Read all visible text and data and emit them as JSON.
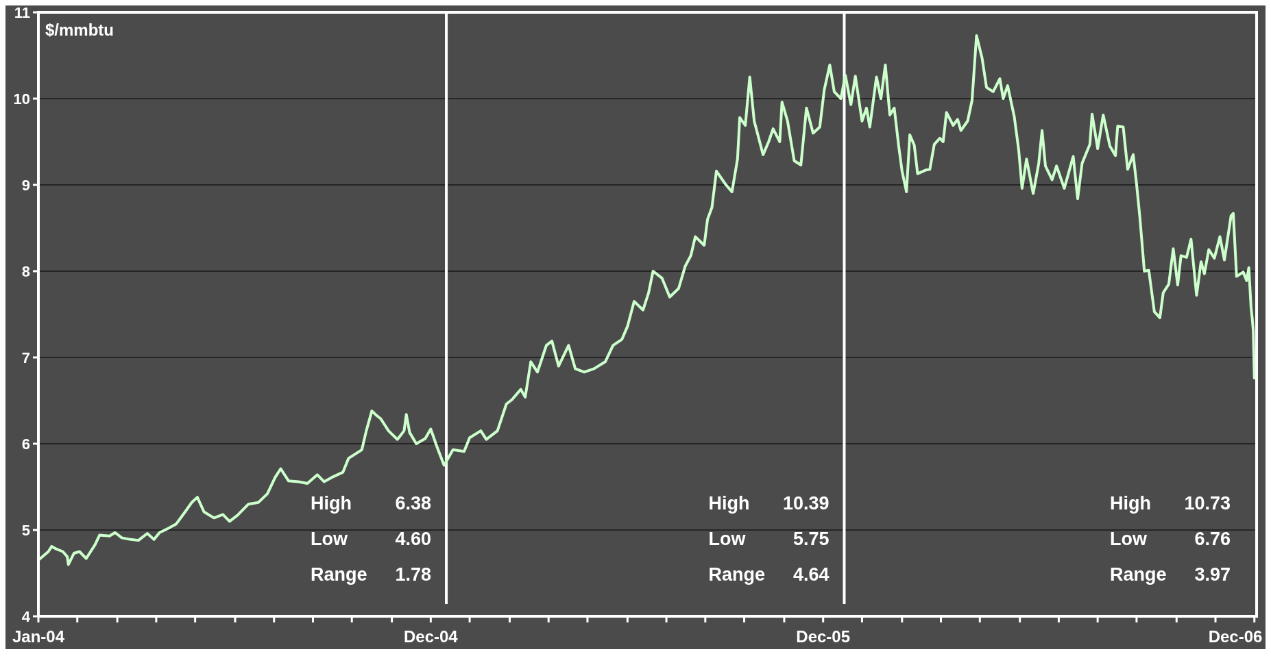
{
  "chart_data": {
    "type": "line",
    "ylabel": "$/mmbtu",
    "xlim": [
      "2004-01-02",
      "2007-01-02"
    ],
    "ylim": [
      4,
      11
    ],
    "yticks": [
      4,
      5,
      6,
      7,
      8,
      9,
      10,
      11
    ],
    "xticks": [
      {
        "value": "2004-01-02",
        "label": "Jan-04"
      },
      {
        "value": "2004-02-06",
        "label": null
      },
      {
        "value": "2004-03-13",
        "label": null
      },
      {
        "value": "2004-04-17",
        "label": null
      },
      {
        "value": "2004-05-22",
        "label": null
      },
      {
        "value": "2004-06-27",
        "label": null
      },
      {
        "value": "2004-08-01",
        "label": null
      },
      {
        "value": "2004-09-05",
        "label": null
      },
      {
        "value": "2004-10-10",
        "label": null
      },
      {
        "value": "2004-11-15",
        "label": null
      },
      {
        "value": "2004-12-20",
        "label": "Dec-04"
      },
      {
        "value": "2005-01-24",
        "label": null
      },
      {
        "value": "2005-03-01",
        "label": null
      },
      {
        "value": "2005-04-05",
        "label": null
      },
      {
        "value": "2005-05-10",
        "label": null
      },
      {
        "value": "2005-06-15",
        "label": null
      },
      {
        "value": "2005-07-20",
        "label": null
      },
      {
        "value": "2005-08-24",
        "label": null
      },
      {
        "value": "2005-09-28",
        "label": null
      },
      {
        "value": "2005-11-03",
        "label": null
      },
      {
        "value": "2005-12-08",
        "label": "Dec-05"
      },
      {
        "value": "2006-01-12",
        "label": null
      },
      {
        "value": "2006-02-17",
        "label": null
      },
      {
        "value": "2006-03-24",
        "label": null
      },
      {
        "value": "2006-04-28",
        "label": null
      },
      {
        "value": "2006-06-03",
        "label": null
      },
      {
        "value": "2006-07-08",
        "label": null
      },
      {
        "value": "2006-08-12",
        "label": null
      },
      {
        "value": "2006-09-16",
        "label": null
      },
      {
        "value": "2006-10-22",
        "label": null
      },
      {
        "value": "2006-11-26",
        "label": null
      },
      {
        "value": "2006-12-31",
        "label": "Dec-06"
      }
    ],
    "grid": "y",
    "ref_lines": [
      {
        "axis": "x",
        "value": "2005-01-03",
        "color": "#ffffff"
      },
      {
        "axis": "x",
        "value": "2005-12-27",
        "color": "#ffffff"
      }
    ],
    "annotations": [
      "High 6.38",
      "Low 4.60",
      "Range 1.78",
      "High 10.39",
      "Low 5.75",
      "Range 4.64",
      "High 10.73",
      "Low 6.76",
      "Range 3.97"
    ],
    "series": [
      {
        "color": "#ccffcc",
        "x": [
          "2004-01-02",
          "2004-01-11",
          "2004-01-14",
          "2004-01-18",
          "2004-01-24",
          "2004-01-28",
          "2004-01-29",
          "2004-02-03",
          "2004-02-08",
          "2004-02-14",
          "2004-02-18",
          "2004-02-22",
          "2004-02-26",
          "2004-03-06",
          "2004-03-11",
          "2004-03-17",
          "2004-03-25",
          "2004-04-01",
          "2004-04-09",
          "2004-04-15",
          "2004-04-20",
          "2004-04-28",
          "2004-05-05",
          "2004-05-13",
          "2004-05-19",
          "2004-05-24",
          "2004-05-30",
          "2004-06-08",
          "2004-06-16",
          "2004-06-22",
          "2004-06-29",
          "2004-07-09",
          "2004-07-18",
          "2004-07-26",
          "2004-08-02",
          "2004-08-07",
          "2004-08-14",
          "2004-08-23",
          "2004-08-31",
          "2004-09-09",
          "2004-09-15",
          "2004-09-22",
          "2004-10-02",
          "2004-10-07",
          "2004-10-19",
          "2004-10-23",
          "2004-10-28",
          "2004-11-01",
          "2004-11-05",
          "2004-11-12",
          "2004-11-20",
          "2004-11-26",
          "2004-11-28",
          "2004-12-01",
          "2004-12-07",
          "2004-12-15",
          "2004-12-20",
          "2004-12-26",
          "2005-01-01",
          "2005-01-09",
          "2005-01-19",
          "2005-01-24",
          "2005-02-03",
          "2005-02-08",
          "2005-02-18",
          "2005-02-26",
          "2005-03-03",
          "2005-03-11",
          "2005-03-15",
          "2005-03-20",
          "2005-03-26",
          "2005-04-03",
          "2005-04-08",
          "2005-04-14",
          "2005-04-23",
          "2005-04-29",
          "2005-05-07",
          "2005-05-16",
          "2005-05-26",
          "2005-06-02",
          "2005-06-10",
          "2005-06-15",
          "2005-06-21",
          "2005-06-29",
          "2005-07-04",
          "2005-07-08",
          "2005-07-16",
          "2005-07-23",
          "2005-07-31",
          "2005-08-06",
          "2005-08-11",
          "2005-08-15",
          "2005-08-23",
          "2005-08-26",
          "2005-08-30",
          "2005-09-03",
          "2005-09-11",
          "2005-09-17",
          "2005-09-22",
          "2005-09-24",
          "2005-09-29",
          "2005-10-03",
          "2005-10-07",
          "2005-10-15",
          "2005-10-20",
          "2005-10-24",
          "2005-10-30",
          "2005-11-01",
          "2005-11-06",
          "2005-11-12",
          "2005-11-18",
          "2005-11-23",
          "2005-11-29",
          "2005-12-05",
          "2005-12-09",
          "2005-12-14",
          "2005-12-18",
          "2005-12-24",
          "2005-12-28",
          "2006-01-02",
          "2006-01-06",
          "2006-01-12",
          "2006-01-16",
          "2006-01-19",
          "2006-01-25",
          "2006-01-29",
          "2006-02-02",
          "2006-02-06",
          "2006-02-10",
          "2006-02-14",
          "2006-02-17",
          "2006-02-21",
          "2006-02-24",
          "2006-02-28",
          "2006-03-03",
          "2006-03-10",
          "2006-03-14",
          "2006-03-18",
          "2006-03-23",
          "2006-03-26",
          "2006-03-29",
          "2006-04-04",
          "2006-04-08",
          "2006-04-11",
          "2006-04-17",
          "2006-04-21",
          "2006-04-25",
          "2006-04-30",
          "2006-05-04",
          "2006-05-10",
          "2006-05-16",
          "2006-05-19",
          "2006-05-23",
          "2006-05-29",
          "2006-06-02",
          "2006-06-05",
          "2006-06-09",
          "2006-06-15",
          "2006-06-20",
          "2006-06-23",
          "2006-06-26",
          "2006-07-02",
          "2006-07-06",
          "2006-07-13",
          "2006-07-21",
          "2006-07-25",
          "2006-07-29",
          "2006-08-05",
          "2006-08-07",
          "2006-08-12",
          "2006-08-17",
          "2006-08-23",
          "2006-08-28",
          "2006-08-30",
          "2006-09-04",
          "2006-09-08",
          "2006-09-13",
          "2006-09-16",
          "2006-09-19",
          "2006-09-23",
          "2006-09-27",
          "2006-10-02",
          "2006-10-07",
          "2006-10-10",
          "2006-10-15",
          "2006-10-19",
          "2006-10-23",
          "2006-10-26",
          "2006-10-31",
          "2006-11-04",
          "2006-11-09",
          "2006-11-13",
          "2006-11-16",
          "2006-11-20",
          "2006-11-25",
          "2006-11-30",
          "2006-12-04",
          "2006-12-10",
          "2006-12-12",
          "2006-12-15",
          "2006-12-21",
          "2006-12-24",
          "2006-12-26",
          "2006-12-28",
          "2006-12-29",
          "2006-12-30",
          "2006-12-31"
        ],
        "values": [
          4.65,
          4.75,
          4.81,
          4.78,
          4.75,
          4.69,
          4.6,
          4.73,
          4.75,
          4.67,
          4.75,
          4.83,
          4.94,
          4.93,
          4.97,
          4.91,
          4.89,
          4.88,
          4.96,
          4.89,
          4.97,
          5.02,
          5.07,
          5.21,
          5.32,
          5.38,
          5.21,
          5.14,
          5.18,
          5.1,
          5.17,
          5.3,
          5.32,
          5.42,
          5.61,
          5.71,
          5.57,
          5.56,
          5.54,
          5.64,
          5.56,
          5.61,
          5.67,
          5.83,
          5.93,
          6.15,
          6.38,
          6.33,
          6.29,
          6.15,
          6.05,
          6.15,
          6.34,
          6.13,
          6,
          6.06,
          6.17,
          5.95,
          5.75,
          5.93,
          5.91,
          6.07,
          6.15,
          6.05,
          6.15,
          6.46,
          6.51,
          6.63,
          6.54,
          6.95,
          6.83,
          7.14,
          7.19,
          6.9,
          7.14,
          6.87,
          6.83,
          6.87,
          6.95,
          7.14,
          7.21,
          7.36,
          7.65,
          7.55,
          7.75,
          8,
          7.92,
          7.7,
          7.8,
          8.06,
          8.18,
          8.4,
          8.3,
          8.6,
          8.74,
          9.16,
          9.01,
          8.92,
          9.3,
          9.78,
          9.69,
          10.25,
          9.74,
          9.35,
          9.5,
          9.65,
          9.5,
          9.96,
          9.74,
          9.28,
          9.23,
          9.89,
          9.6,
          9.67,
          10.1,
          10.39,
          10.08,
          10,
          10.27,
          9.93,
          10.26,
          9.74,
          9.89,
          9.67,
          10.25,
          10,
          10.39,
          9.81,
          9.89,
          9.45,
          9.16,
          8.92,
          9.58,
          9.46,
          9.13,
          9.17,
          9.18,
          9.47,
          9.54,
          9.5,
          9.84,
          9.69,
          9.76,
          9.63,
          9.74,
          9.98,
          10.73,
          10.47,
          10.13,
          10.08,
          10.23,
          10,
          10.15,
          9.79,
          9.4,
          8.96,
          9.3,
          8.9,
          9.25,
          9.63,
          9.22,
          9.06,
          9.22,
          8.96,
          9.33,
          8.84,
          9.25,
          9.47,
          9.82,
          9.42,
          9.81,
          9.45,
          9.34,
          9.68,
          9.67,
          9.18,
          9.35,
          9.01,
          8.62,
          8,
          8.01,
          7.53,
          7.46,
          7.75,
          7.85,
          8.26,
          7.84,
          8.18,
          8.16,
          8.37,
          7.72,
          8.11,
          7.97,
          8.25,
          8.15,
          8.4,
          8.13,
          8.64,
          8.67,
          7.94,
          7.99,
          7.89,
          8.04,
          7.58,
          7.46,
          7.31,
          6.76
        ]
      }
    ]
  }
}
